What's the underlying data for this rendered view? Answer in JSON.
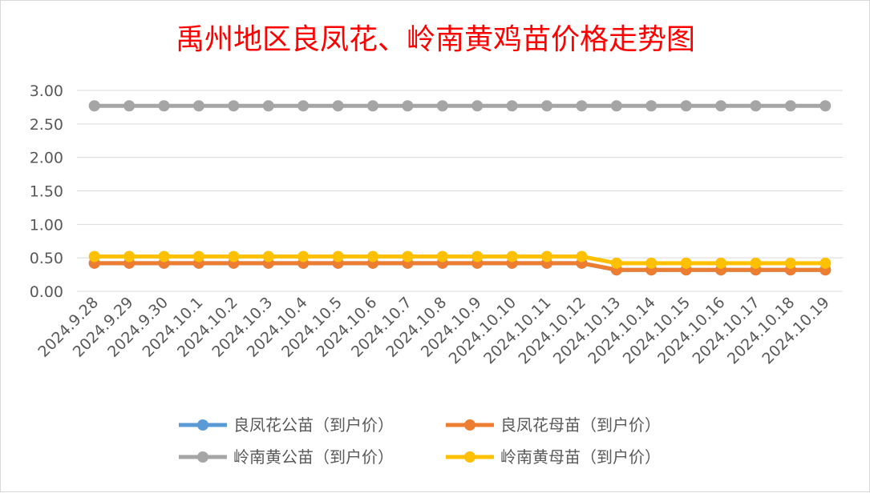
{
  "chart_data": {
    "type": "line",
    "title": "禹州地区良凤花、岭南黄鸡苗价格走势图",
    "xlabel": "",
    "ylabel": "",
    "categories": [
      "2024.9.28",
      "2024.9.29",
      "2024.9.30",
      "2024.10.1",
      "2024.10.2",
      "2024.10.3",
      "2024.10.4",
      "2024.10.5",
      "2024.10.6",
      "2024.10.7",
      "2024.10.8",
      "2024.10.9",
      "2024.10.10",
      "2024.10.11",
      "2024.10.12",
      "2024.10.13",
      "2024.10.14",
      "2024.10.15",
      "2024.10.16",
      "2024.10.17",
      "2024.10.18",
      "2024.10.19"
    ],
    "ylim": [
      0,
      3
    ],
    "yticks": [
      "0.00",
      "0.50",
      "1.00",
      "1.50",
      "2.00",
      "2.50",
      "3.00"
    ],
    "grid": true,
    "legend_position": "bottom",
    "series": [
      {
        "name": "良凤花公苗（到户价）",
        "color": "#5b9bd5",
        "values": [
          0.42,
          0.42,
          0.42,
          0.42,
          0.42,
          0.42,
          0.42,
          0.42,
          0.42,
          0.42,
          0.42,
          0.42,
          0.42,
          0.42,
          0.42,
          0.32,
          0.32,
          0.32,
          0.32,
          0.32,
          0.32,
          0.32
        ]
      },
      {
        "name": "良凤花母苗（到户价）",
        "color": "#ed7d31",
        "values": [
          0.42,
          0.42,
          0.42,
          0.42,
          0.42,
          0.42,
          0.42,
          0.42,
          0.42,
          0.42,
          0.42,
          0.42,
          0.42,
          0.42,
          0.42,
          0.32,
          0.32,
          0.32,
          0.32,
          0.32,
          0.32,
          0.32
        ]
      },
      {
        "name": "岭南黄公苗（到户价）",
        "color": "#a5a5a5",
        "values": [
          2.77,
          2.77,
          2.77,
          2.77,
          2.77,
          2.77,
          2.77,
          2.77,
          2.77,
          2.77,
          2.77,
          2.77,
          2.77,
          2.77,
          2.77,
          2.77,
          2.77,
          2.77,
          2.77,
          2.77,
          2.77,
          2.77
        ]
      },
      {
        "name": "岭南黄母苗（到户价）",
        "color": "#ffc000",
        "values": [
          0.52,
          0.52,
          0.52,
          0.52,
          0.52,
          0.52,
          0.52,
          0.52,
          0.52,
          0.52,
          0.52,
          0.52,
          0.52,
          0.52,
          0.52,
          0.42,
          0.42,
          0.42,
          0.42,
          0.42,
          0.42,
          0.42
        ]
      }
    ]
  }
}
